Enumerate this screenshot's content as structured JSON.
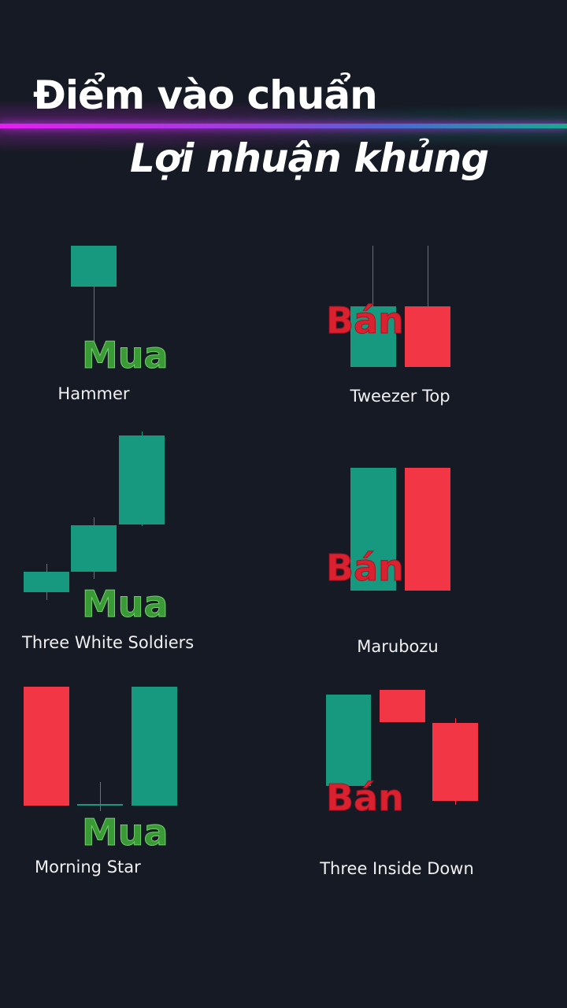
{
  "title": {
    "line1": "Điểm vào chuẩn",
    "line2": "Lợi nhuận khủng"
  },
  "colors": {
    "bullish": "#16997f",
    "bearish": "#f23645",
    "buy_label": "#3a9a35",
    "sell_label": "#d9212f",
    "background": "#161a25"
  },
  "patterns": [
    {
      "name": "Hammer",
      "signal": "Mua"
    },
    {
      "name": "Tweezer Top",
      "signal": "Bán"
    },
    {
      "name": "Three White Soldiers",
      "signal": "Mua"
    },
    {
      "name": "Marubozu",
      "signal": "Bán"
    },
    {
      "name": "Morning Star",
      "signal": "Mua"
    },
    {
      "name": "Three Inside Down",
      "signal": "Bán"
    }
  ]
}
